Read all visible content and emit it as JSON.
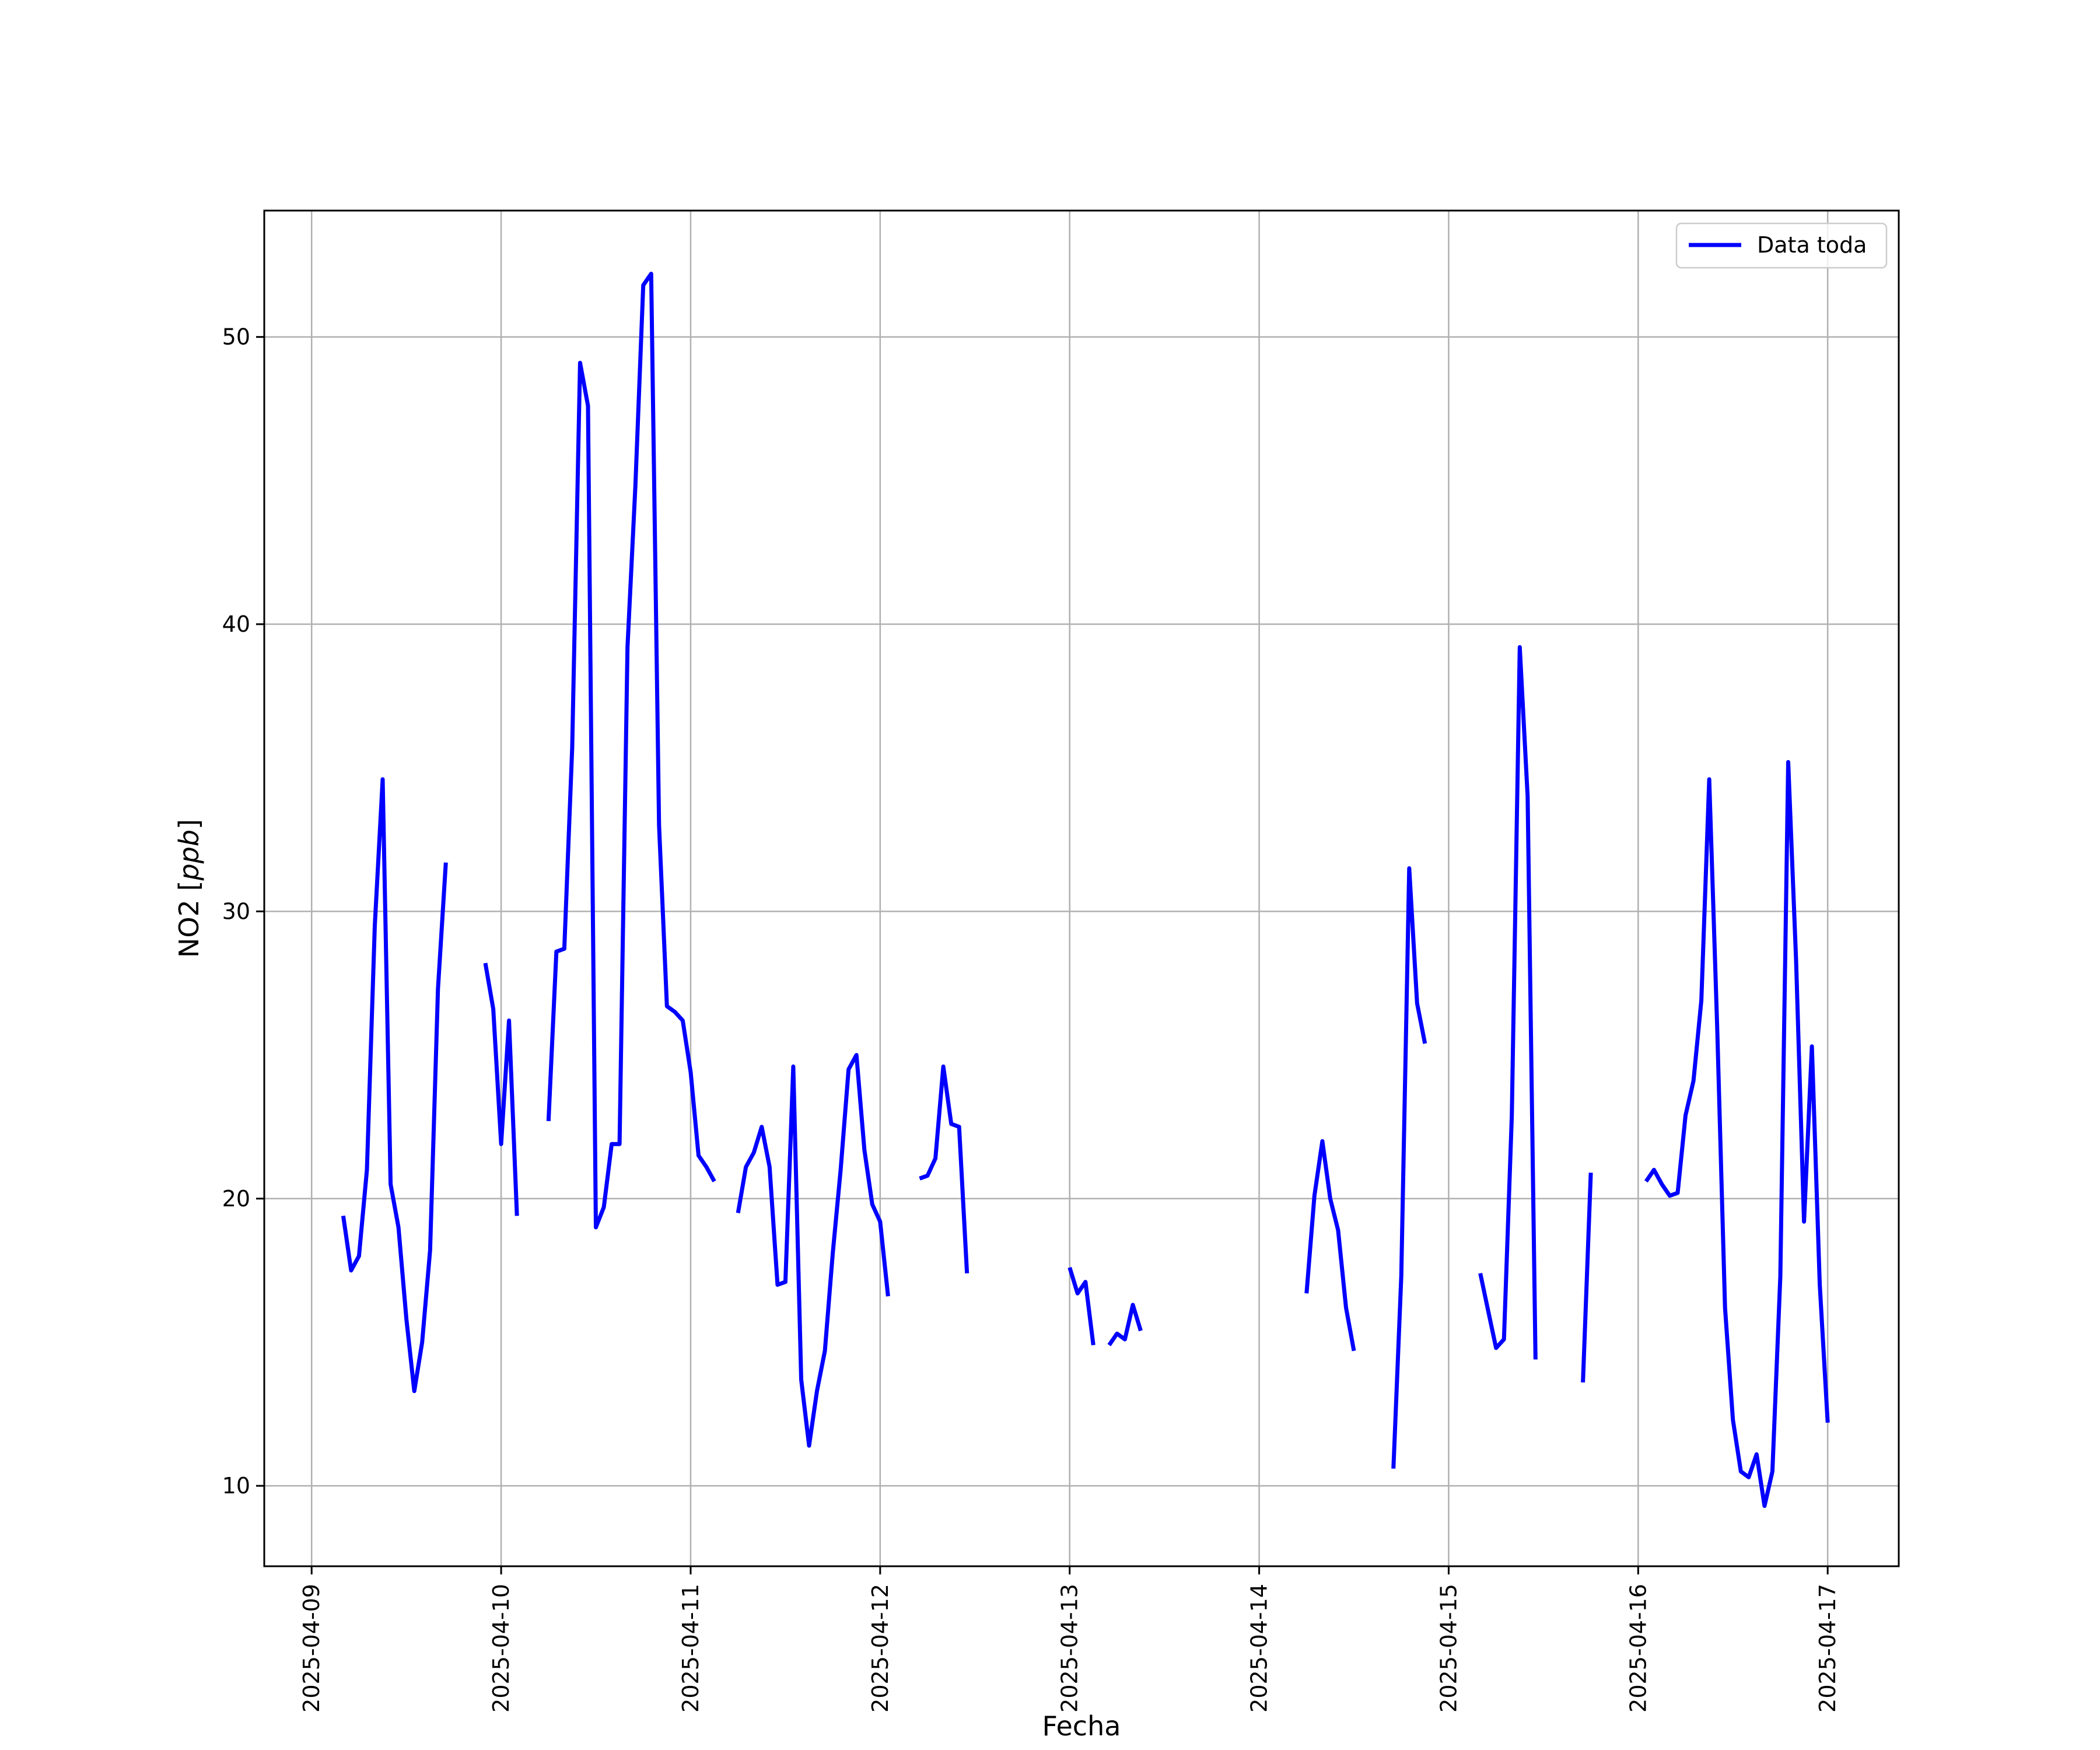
{
  "chart_data": {
    "type": "line",
    "title": "",
    "xlabel": "Fecha",
    "ylabel": "NO2",
    "ylabel_unit": "ppb",
    "x_tick_labels": [
      "2025-04-09",
      "2025-04-10",
      "2025-04-11",
      "2025-04-12",
      "2025-04-13",
      "2025-04-14",
      "2025-04-15",
      "2025-04-16",
      "2025-04-17"
    ],
    "y_ticks": [
      10,
      20,
      30,
      40,
      50
    ],
    "xlim": [
      "2025-04-08T18:00",
      "2025-04-17T09:00"
    ],
    "ylim": [
      7.2,
      54.4
    ],
    "grid": true,
    "legend_position": "top-right",
    "colors": {
      "series": "#0000ff",
      "grid": "#b0b0b0",
      "frame": "#000000"
    },
    "series": [
      {
        "name": "Data toda",
        "color": "#0000ff",
        "segments": [
          [
            [
              "2025-04-09T04:00",
              19.4
            ],
            [
              "2025-04-09T05:00",
              17.5
            ],
            [
              "2025-04-09T06:00",
              18.0
            ],
            [
              "2025-04-09T07:00",
              21.0
            ],
            [
              "2025-04-09T08:00",
              29.5
            ],
            [
              "2025-04-09T09:00",
              34.6
            ],
            [
              "2025-04-09T10:00",
              20.5
            ],
            [
              "2025-04-09T11:00",
              19.0
            ],
            [
              "2025-04-09T12:00",
              15.8
            ],
            [
              "2025-04-09T13:00",
              13.3
            ],
            [
              "2025-04-09T14:00",
              15.0
            ],
            [
              "2025-04-09T15:00",
              18.2
            ],
            [
              "2025-04-09T16:00",
              27.3
            ],
            [
              "2025-04-09T17:00",
              31.7
            ]
          ],
          [
            [
              "2025-04-09T22:00",
              28.2
            ],
            [
              "2025-04-09T23:00",
              26.6
            ],
            [
              "2025-04-10T00:00",
              21.9
            ],
            [
              "2025-04-10T01:00",
              26.2
            ],
            [
              "2025-04-10T02:00",
              19.4
            ]
          ],
          [
            [
              "2025-04-10T06:00",
              22.7
            ],
            [
              "2025-04-10T07:00",
              28.6
            ],
            [
              "2025-04-10T08:00",
              28.7
            ],
            [
              "2025-04-10T09:00",
              35.7
            ],
            [
              "2025-04-10T10:00",
              49.1
            ],
            [
              "2025-04-10T11:00",
              47.6
            ],
            [
              "2025-04-10T12:00",
              19.0
            ],
            [
              "2025-04-10T13:00",
              19.7
            ],
            [
              "2025-04-10T14:00",
              21.9
            ],
            [
              "2025-04-10T15:00",
              21.9
            ],
            [
              "2025-04-10T16:00",
              39.2
            ],
            [
              "2025-04-10T17:00",
              44.8
            ],
            [
              "2025-04-10T18:00",
              51.8
            ],
            [
              "2025-04-10T19:00",
              52.2
            ],
            [
              "2025-04-10T20:00",
              33.0
            ],
            [
              "2025-04-10T21:00",
              26.7
            ],
            [
              "2025-04-10T22:00",
              26.5
            ],
            [
              "2025-04-10T23:00",
              26.2
            ],
            [
              "2025-04-11T00:00",
              24.4
            ],
            [
              "2025-04-11T01:00",
              21.5
            ],
            [
              "2025-04-11T02:00",
              21.1
            ],
            [
              "2025-04-11T03:00",
              20.6
            ]
          ],
          [
            [
              "2025-04-11T06:00",
              19.5
            ],
            [
              "2025-04-11T07:00",
              21.1
            ],
            [
              "2025-04-11T08:00",
              21.6
            ],
            [
              "2025-04-11T09:00",
              22.5
            ],
            [
              "2025-04-11T10:00",
              21.1
            ],
            [
              "2025-04-11T11:00",
              17.0
            ],
            [
              "2025-04-11T12:00",
              17.1
            ],
            [
              "2025-04-11T13:00",
              24.6
            ],
            [
              "2025-04-11T14:00",
              13.7
            ],
            [
              "2025-04-11T15:00",
              11.4
            ],
            [
              "2025-04-11T16:00",
              13.3
            ],
            [
              "2025-04-11T17:00",
              14.7
            ],
            [
              "2025-04-11T18:00",
              18.1
            ],
            [
              "2025-04-11T19:00",
              21.0
            ],
            [
              "2025-04-11T20:00",
              24.5
            ],
            [
              "2025-04-11T21:00",
              25.0
            ],
            [
              "2025-04-11T22:00",
              21.7
            ],
            [
              "2025-04-11T23:00",
              19.8
            ],
            [
              "2025-04-12T00:00",
              19.2
            ],
            [
              "2025-04-12T01:00",
              16.6
            ]
          ],
          [
            [
              "2025-04-12T05:00",
              20.7
            ],
            [
              "2025-04-12T06:00",
              20.8
            ],
            [
              "2025-04-12T07:00",
              21.4
            ],
            [
              "2025-04-12T08:00",
              24.6
            ],
            [
              "2025-04-12T09:00",
              22.6
            ],
            [
              "2025-04-12T10:00",
              22.5
            ],
            [
              "2025-04-12T11:00",
              17.4
            ]
          ],
          [
            [
              "2025-04-13T00:00",
              17.6
            ],
            [
              "2025-04-13T01:00",
              16.7
            ],
            [
              "2025-04-13T02:00",
              17.1
            ],
            [
              "2025-04-13T03:00",
              14.9
            ]
          ],
          [
            [
              "2025-04-13T05:00",
              14.9
            ],
            [
              "2025-04-13T06:00",
              15.3
            ],
            [
              "2025-04-13T07:00",
              15.1
            ],
            [
              "2025-04-13T08:00",
              16.3
            ],
            [
              "2025-04-13T09:00",
              15.4
            ]
          ],
          [
            [
              "2025-04-14T06:00",
              16.7
            ],
            [
              "2025-04-14T07:00",
              20.1
            ],
            [
              "2025-04-14T08:00",
              22.0
            ],
            [
              "2025-04-14T09:00",
              20.0
            ],
            [
              "2025-04-14T10:00",
              18.9
            ],
            [
              "2025-04-14T11:00",
              16.2
            ],
            [
              "2025-04-14T12:00",
              14.7
            ]
          ],
          [
            [
              "2025-04-14T17:00",
              10.6
            ],
            [
              "2025-04-14T18:00",
              17.3
            ],
            [
              "2025-04-14T19:00",
              31.5
            ],
            [
              "2025-04-14T20:00",
              26.8
            ],
            [
              "2025-04-14T21:00",
              25.4
            ]
          ],
          [
            [
              "2025-04-15T04:00",
              17.4
            ],
            [
              "2025-04-15T05:00",
              16.1
            ],
            [
              "2025-04-15T06:00",
              14.8
            ],
            [
              "2025-04-15T07:00",
              15.1
            ],
            [
              "2025-04-15T08:00",
              22.9
            ],
            [
              "2025-04-15T09:00",
              39.2
            ],
            [
              "2025-04-15T10:00",
              34.0
            ],
            [
              "2025-04-15T11:00",
              14.4
            ]
          ],
          [
            [
              "2025-04-15T17:00",
              13.6
            ],
            [
              "2025-04-15T18:00",
              20.9
            ]
          ],
          [
            [
              "2025-04-16T01:00",
              20.6
            ],
            [
              "2025-04-16T02:00",
              21.0
            ],
            [
              "2025-04-16T03:00",
              20.5
            ],
            [
              "2025-04-16T04:00",
              20.1
            ],
            [
              "2025-04-16T05:00",
              20.2
            ],
            [
              "2025-04-16T06:00",
              22.9
            ],
            [
              "2025-04-16T07:00",
              24.1
            ],
            [
              "2025-04-16T08:00",
              26.9
            ],
            [
              "2025-04-16T09:00",
              34.6
            ],
            [
              "2025-04-16T10:00",
              26.0
            ],
            [
              "2025-04-16T11:00",
              16.2
            ],
            [
              "2025-04-16T12:00",
              12.3
            ],
            [
              "2025-04-16T13:00",
              10.5
            ],
            [
              "2025-04-16T14:00",
              10.3
            ],
            [
              "2025-04-16T15:00",
              11.1
            ],
            [
              "2025-04-16T16:00",
              9.3
            ],
            [
              "2025-04-16T17:00",
              10.5
            ],
            [
              "2025-04-16T18:00",
              17.3
            ],
            [
              "2025-04-16T19:00",
              35.2
            ],
            [
              "2025-04-16T20:00",
              28.3
            ],
            [
              "2025-04-16T21:00",
              19.2
            ],
            [
              "2025-04-16T22:00",
              25.3
            ],
            [
              "2025-04-16T23:00",
              17.0
            ],
            [
              "2025-04-17T00:00",
              12.2
            ]
          ]
        ]
      }
    ]
  }
}
